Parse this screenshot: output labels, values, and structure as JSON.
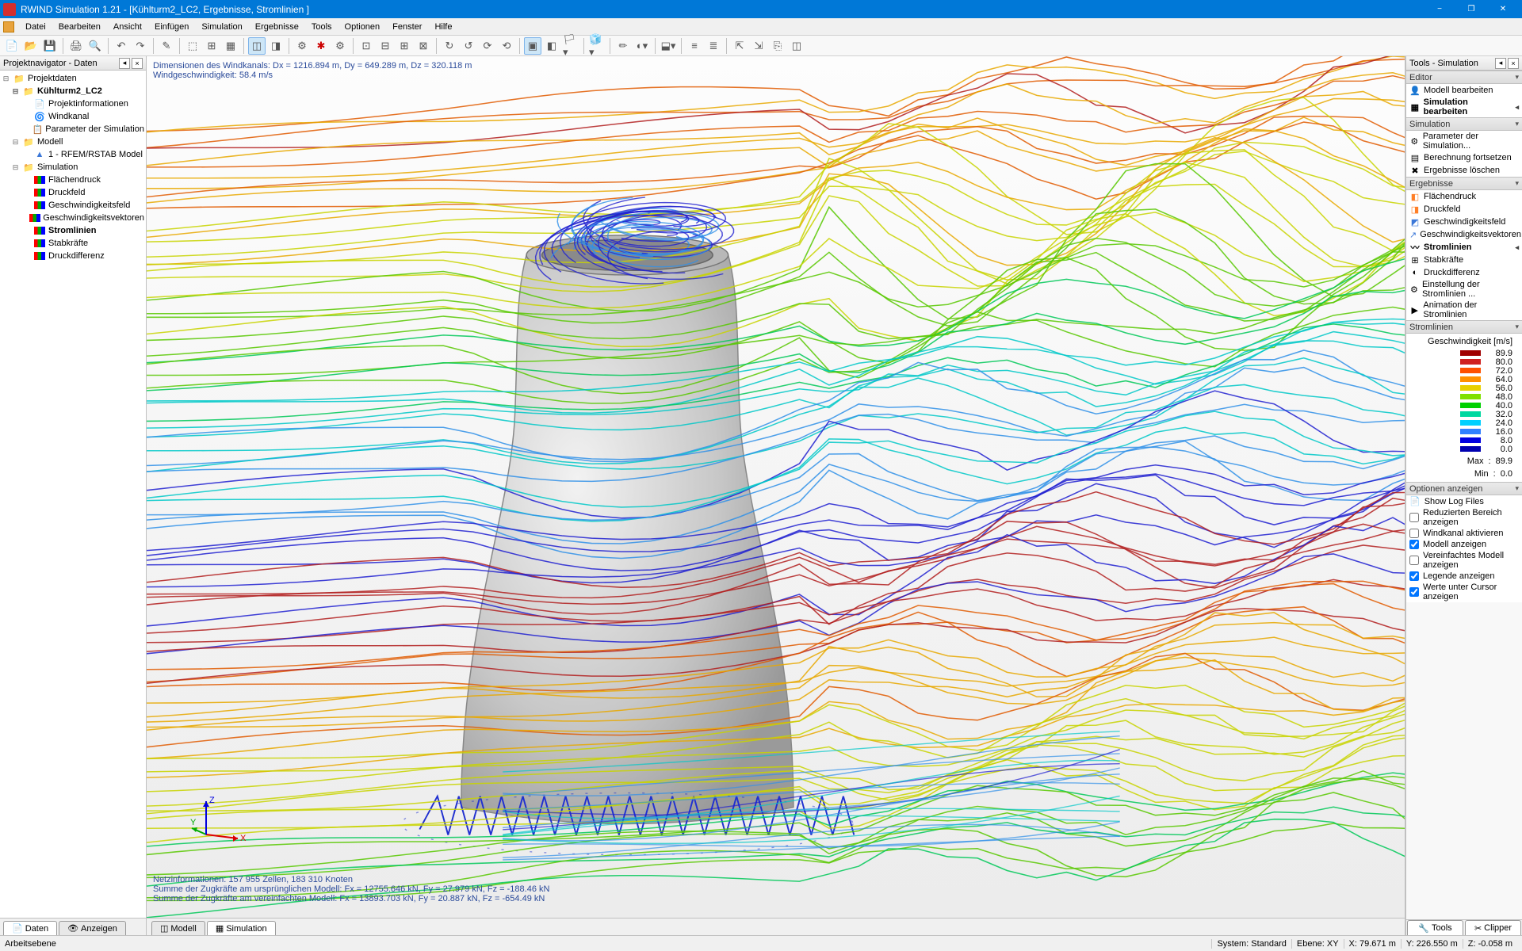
{
  "title": "RWIND Simulation 1.21 - [Kühlturm2_LC2, Ergebnisse, Stromlinien ]",
  "menu": [
    "Datei",
    "Bearbeiten",
    "Ansicht",
    "Einfügen",
    "Simulation",
    "Ergebnisse",
    "Tools",
    "Optionen",
    "Fenster",
    "Hilfe"
  ],
  "leftPanel": {
    "title": "Projektnavigator - Daten",
    "tree": [
      {
        "lvl": 0,
        "icon": "folder",
        "label": "Projektdaten",
        "toggle": "-"
      },
      {
        "lvl": 1,
        "icon": "folder",
        "label": "Kühlturm2_LC2",
        "toggle": "-",
        "bold": true
      },
      {
        "lvl": 2,
        "icon": "doc",
        "label": "Projektinformationen"
      },
      {
        "lvl": 2,
        "icon": "wind",
        "label": "Windkanal"
      },
      {
        "lvl": 2,
        "icon": "param",
        "label": "Parameter der Simulation"
      },
      {
        "lvl": 1,
        "icon": "folder",
        "label": "Modell",
        "toggle": "-"
      },
      {
        "lvl": 2,
        "icon": "model",
        "label": "1 - RFEM/RSTAB Model"
      },
      {
        "lvl": 1,
        "icon": "folder",
        "label": "Simulation",
        "toggle": "-"
      },
      {
        "lvl": 2,
        "icon": "result",
        "label": "Flächendruck"
      },
      {
        "lvl": 2,
        "icon": "result",
        "label": "Druckfeld"
      },
      {
        "lvl": 2,
        "icon": "result",
        "label": "Geschwindigkeitsfeld"
      },
      {
        "lvl": 2,
        "icon": "result",
        "label": "Geschwindigkeitsvektoren"
      },
      {
        "lvl": 2,
        "icon": "result",
        "label": "Stromlinien",
        "bold": true
      },
      {
        "lvl": 2,
        "icon": "result",
        "label": "Stabkräfte"
      },
      {
        "lvl": 2,
        "icon": "result",
        "label": "Druckdifferenz"
      }
    ],
    "tabs": [
      {
        "icon": "📄",
        "label": "Daten",
        "active": true
      },
      {
        "icon": "👁",
        "label": "Anzeigen",
        "active": false
      }
    ]
  },
  "viewport": {
    "topLines": [
      "Dimensionen des Windkanals: Dx = 1216.894 m, Dy = 649.289 m, Dz = 320.118 m",
      "Windgeschwindigkeit: 58.4 m/s"
    ],
    "bottomLines": [
      "Netzinformationen: 157 955 Zellen, 183 310 Knoten",
      "Summe der Zugkräfte am ursprünglichen Modell: Fx = 12755.646 kN, Fy = 27.979 kN, Fz = -188.46 kN",
      "Summe der Zugkräfte am vereinfachten Modell: Fx = 13893.703 kN, Fy = 20.887 kN, Fz = -654.49 kN"
    ],
    "tabs": [
      {
        "icon": "◫",
        "label": "Modell",
        "active": false
      },
      {
        "icon": "▦",
        "label": "Simulation",
        "active": true
      }
    ],
    "axes": {
      "x": "X",
      "y": "Y",
      "z": "Z"
    },
    "tower_fill": "#c8c8c8",
    "ground_gradient": [
      "#fdfdfd",
      "#ebebeb"
    ],
    "streamline_colors": [
      "#b21f1f",
      "#e05a00",
      "#e8a800",
      "#c8d400",
      "#58c800",
      "#00c858",
      "#00c8c8",
      "#3090e8",
      "#2020d0"
    ]
  },
  "rightPanel": {
    "title": "Tools - Simulation",
    "sections": {
      "editor": {
        "title": "Editor",
        "items": [
          {
            "icon": "👤",
            "label": "Modell bearbeiten"
          },
          {
            "icon": "▦",
            "label": "Simulation bearbeiten",
            "bold": true,
            "arrow": true
          }
        ]
      },
      "simulation": {
        "title": "Simulation",
        "items": [
          {
            "icon": "⚙",
            "label": "Parameter der Simulation..."
          },
          {
            "icon": "▤",
            "label": "Berechnung fortsetzen"
          },
          {
            "icon": "✖",
            "label": "Ergebnisse löschen"
          }
        ]
      },
      "ergebnisse": {
        "title": "Ergebnisse",
        "items": [
          {
            "icon": "◧",
            "label": "Flächendruck",
            "color": "#ff7f27"
          },
          {
            "icon": "◨",
            "label": "Druckfeld",
            "color": "#ff7f27"
          },
          {
            "icon": "◩",
            "label": "Geschwindigkeitsfeld",
            "color": "#3c78d8"
          },
          {
            "icon": "↗",
            "label": "Geschwindigkeitsvektoren",
            "color": "#3c78d8"
          },
          {
            "icon": "〰",
            "label": "Stromlinien",
            "bold": true,
            "arrow": true
          },
          {
            "icon": "⊞",
            "label": "Stabkräfte"
          },
          {
            "icon": "◐",
            "label": "Druckdifferenz"
          },
          {
            "icon": "⚙",
            "label": "Einstellung der Stromlinien ..."
          },
          {
            "icon": "▶",
            "label": "Animation der Stromlinien"
          }
        ]
      },
      "stromlinien": {
        "title": "Stromlinien"
      },
      "optionen": {
        "title": "Optionen anzeigen",
        "checks": [
          {
            "label": "Show Log Files",
            "checked": false,
            "icon": true
          },
          {
            "label": "Reduzierten Bereich anzeigen",
            "checked": false
          },
          {
            "label": "Windkanal aktivieren",
            "checked": false
          },
          {
            "label": "Modell anzeigen",
            "checked": true
          },
          {
            "label": "Vereinfachtes Modell anzeigen",
            "checked": false
          },
          {
            "label": "Legende anzeigen",
            "checked": true
          },
          {
            "label": "Werte unter Cursor anzeigen",
            "checked": true
          }
        ]
      }
    },
    "legend": {
      "title": "Geschwindigkeit [m/s]",
      "entries": [
        {
          "color": "#a00000",
          "val": "89.9"
        },
        {
          "color": "#d02020",
          "val": "80.0"
        },
        {
          "color": "#ff5000",
          "val": "72.0"
        },
        {
          "color": "#ff9000",
          "val": "64.0"
        },
        {
          "color": "#e8d000",
          "val": "56.0"
        },
        {
          "color": "#80e000",
          "val": "48.0"
        },
        {
          "color": "#00d000",
          "val": "40.0"
        },
        {
          "color": "#00d8a0",
          "val": "32.0"
        },
        {
          "color": "#00d0ff",
          "val": "24.0"
        },
        {
          "color": "#3080ff",
          "val": "16.0"
        },
        {
          "color": "#0000e0",
          "val": "8.0"
        },
        {
          "color": "#0000b0",
          "val": "0.0"
        }
      ],
      "max_label": "Max",
      "max_val": "89.9",
      "min_label": "Min",
      "min_val": "0.0"
    },
    "tabs": [
      {
        "icon": "🔧",
        "label": "Tools"
      },
      {
        "icon": "✂",
        "label": "Clipper"
      }
    ]
  },
  "statusbar": {
    "left": "Arbeitsebene",
    "system_label": "System:",
    "system_val": "Standard",
    "ebene_label": "Ebene:",
    "ebene_val": "XY",
    "x_label": "X:",
    "x_val": "79.671 m",
    "y_label": "Y:",
    "y_val": "226.550 m",
    "z_label": "Z:",
    "z_val": "-0.058 m"
  }
}
